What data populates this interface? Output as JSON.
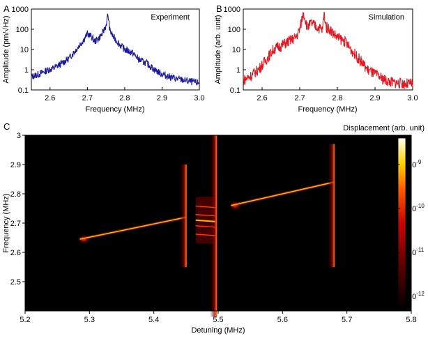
{
  "chart_data": [
    {
      "panel_label": "A",
      "type": "line",
      "annotation": "Experiment",
      "xlabel": "Frequency (MHz)",
      "ylabel": "Amplitude (pm/√Hz)",
      "xlim": [
        2.55,
        3.0
      ],
      "ylim": [
        0.1,
        1000
      ],
      "yscale": "log",
      "xticks": [
        "2.6",
        "2.7",
        "2.8",
        "2.9",
        "3.0"
      ],
      "xtick_values": [
        2.6,
        2.7,
        2.8,
        2.9,
        3.0
      ],
      "yticks": [
        "0.1",
        "1",
        "10",
        "100",
        "1000"
      ],
      "ytick_values": [
        0.1,
        1,
        10,
        100,
        1000
      ],
      "color": "#1a1a9a",
      "series": [
        {
          "x": [
            2.55,
            2.57,
            2.59,
            2.61,
            2.63,
            2.65,
            2.67,
            2.69,
            2.7,
            2.71,
            2.72,
            2.73,
            2.74,
            2.75,
            2.755,
            2.76,
            2.77,
            2.78,
            2.79,
            2.8,
            2.82,
            2.84,
            2.86,
            2.88,
            2.9,
            2.92,
            2.94,
            2.96,
            2.98,
            3.0
          ],
          "y": [
            0.45,
            0.6,
            0.9,
            1.2,
            2.0,
            3.5,
            10,
            30,
            60,
            45,
            25,
            35,
            60,
            150,
            550,
            90,
            40,
            25,
            15,
            10,
            7,
            3,
            2,
            1,
            0.6,
            0.45,
            0.35,
            0.3,
            0.25,
            0.22
          ]
        }
      ]
    },
    {
      "panel_label": "B",
      "type": "line",
      "annotation": "Simulation",
      "xlabel": "Frequency (MHz)",
      "ylabel": "Amplitude (arb. unit)",
      "xlim": [
        2.55,
        3.0
      ],
      "ylim": [
        0.1,
        1000
      ],
      "yscale": "log",
      "xticks": [
        "2.6",
        "2.7",
        "2.8",
        "2.9",
        "3.0"
      ],
      "xtick_values": [
        2.6,
        2.7,
        2.8,
        2.9,
        3.0
      ],
      "yticks": [
        "0.1",
        "1",
        "10",
        "100",
        "1000"
      ],
      "ytick_values": [
        0.1,
        1,
        10,
        100,
        1000
      ],
      "color": "#e8141e",
      "series": [
        {
          "x": [
            2.55,
            2.57,
            2.59,
            2.61,
            2.63,
            2.65,
            2.67,
            2.69,
            2.7,
            2.71,
            2.72,
            2.73,
            2.74,
            2.75,
            2.76,
            2.765,
            2.77,
            2.78,
            2.79,
            2.8,
            2.82,
            2.84,
            2.86,
            2.88,
            2.9,
            2.92,
            2.94,
            2.96,
            2.98,
            3.0
          ],
          "y": [
            0.3,
            0.5,
            1,
            3,
            10,
            15,
            25,
            40,
            100,
            700,
            120,
            200,
            150,
            120,
            90,
            600,
            130,
            100,
            60,
            40,
            25,
            8,
            3,
            1,
            0.6,
            0.35,
            0.25,
            0.22,
            0.2,
            0.2
          ]
        }
      ]
    },
    {
      "panel_label": "C",
      "type": "heatmap",
      "xlabel": "Detuning (MHz)",
      "ylabel": "Frequency (MHz)",
      "colorbar_label": "Displacement (arb. unit)",
      "xlim": [
        5.2,
        5.8
      ],
      "ylim": [
        2.4,
        3.0
      ],
      "xticks": [
        "5.2",
        "5.3",
        "5.4",
        "5.5",
        "5.6",
        "5.7",
        "5.8"
      ],
      "xtick_values": [
        5.2,
        5.3,
        5.4,
        5.5,
        5.6,
        5.7,
        5.8
      ],
      "yticks": [
        "2.5",
        "2.6",
        "2.7",
        "2.8",
        "2.9",
        "3"
      ],
      "ytick_values": [
        2.5,
        2.6,
        2.7,
        2.8,
        2.9,
        3.0
      ],
      "colorbar_ticks": [
        {
          "base": "10",
          "exp": "-9",
          "value": 1e-09
        },
        {
          "base": "10",
          "exp": "-10",
          "value": 1e-10
        },
        {
          "base": "10",
          "exp": "-11",
          "value": 1e-11
        },
        {
          "base": "10",
          "exp": "-12",
          "value": 1e-12
        }
      ],
      "colorbar_range": [
        5e-13,
        4e-09
      ],
      "colorbar_scale": "log",
      "features": [
        {
          "kind": "line",
          "x": [
            5.285,
            5.45
          ],
          "y": [
            2.645,
            2.72
          ]
        },
        {
          "kind": "line",
          "x": [
            5.52,
            5.68
          ],
          "y": [
            2.76,
            2.84
          ]
        },
        {
          "kind": "band",
          "x": 5.45,
          "y": [
            2.55,
            2.9
          ]
        },
        {
          "kind": "band",
          "x": 5.68,
          "y": [
            2.55,
            2.97
          ]
        },
        {
          "kind": "band",
          "x": 5.497,
          "y": [
            2.38,
            3.0
          ]
        },
        {
          "kind": "cluster",
          "x": [
            5.465,
            5.495
          ],
          "y": [
            2.63,
            2.79
          ]
        }
      ]
    }
  ]
}
